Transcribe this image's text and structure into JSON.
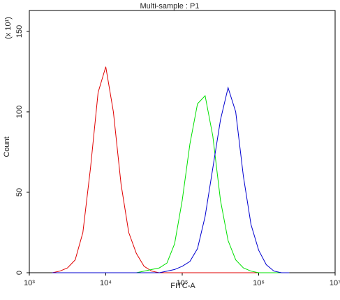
{
  "chart_data": {
    "type": "line",
    "title": "Multi-sample : P1",
    "xlabel": "FITC-A",
    "ylabel": "Count",
    "y_multiplier": "(x 10¹)",
    "xscale": "log",
    "x": [
      1995,
      2512,
      3162,
      3981,
      5012,
      6310,
      7943,
      10000,
      12589,
      15849,
      19953,
      25119,
      31623,
      39811,
      50119,
      63096,
      79433,
      100000,
      125893,
      158489,
      199526,
      251189,
      316228,
      398107,
      501187,
      630957,
      794328,
      1000000,
      1258925,
      1584893,
      1995262,
      2511886
    ],
    "series": [
      {
        "name": "red",
        "color": "#e00000",
        "values": [
          0,
          1,
          3,
          8,
          25,
          65,
          112,
          128,
          100,
          55,
          25,
          12,
          4,
          1,
          0,
          0,
          0,
          0,
          0,
          0,
          0,
          0,
          0,
          0,
          0,
          0,
          0,
          0,
          0,
          0,
          0,
          0
        ]
      },
      {
        "name": "green",
        "color": "#00e000",
        "values": [
          0,
          0,
          0,
          0,
          0,
          0,
          0,
          0,
          0,
          0,
          0,
          0,
          1,
          2,
          3,
          6,
          18,
          45,
          80,
          105,
          110,
          85,
          45,
          20,
          8,
          3,
          1,
          0,
          0,
          0,
          0,
          0
        ]
      },
      {
        "name": "blue",
        "color": "#0000d0",
        "values": [
          0,
          0,
          0,
          0,
          0,
          0,
          0,
          0,
          0,
          0,
          0,
          0,
          0,
          0,
          0,
          1,
          2,
          4,
          7,
          15,
          35,
          65,
          95,
          115,
          100,
          60,
          30,
          14,
          5,
          1,
          0,
          0
        ]
      }
    ],
    "xlim": [
      1000,
      10000000
    ],
    "xticks": [
      {
        "value": 1000,
        "label": "10³"
      },
      {
        "value": 10000,
        "label": "10⁴"
      },
      {
        "value": 100000,
        "label": "10⁵"
      },
      {
        "value": 1000000,
        "label": "10⁶"
      },
      {
        "value": 10000000,
        "label": "10⁷"
      }
    ],
    "ylim": [
      0,
      163
    ],
    "yticks": [
      0,
      50,
      100,
      150
    ]
  }
}
